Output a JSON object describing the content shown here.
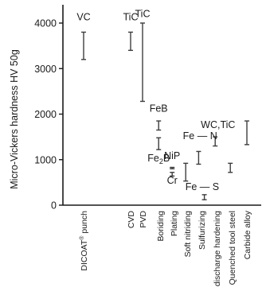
{
  "chart_data": {
    "type": "range",
    "title": "",
    "ylabel": "Micro-Vickers hardness  HV  50g",
    "xlabel": "",
    "ylim": [
      0,
      4500
    ],
    "yticks": [
      0,
      1000,
      2000,
      3000,
      4000
    ],
    "grid": false,
    "bar_color": "#3d3d3d",
    "axis_color": "#1a1a1a",
    "categories": [
      {
        "label": "DICOAT® punch",
        "label_main": "DICOAT",
        "label_sup": "®",
        "label_tail": " punch"
      },
      {
        "label": "CVD"
      },
      {
        "label": "PVD"
      },
      {
        "label": "Boriding"
      },
      {
        "label": "Plating"
      },
      {
        "label": "Soft nitriding"
      },
      {
        "label": "Sulfurizing"
      },
      {
        "label": "discharge hardening"
      },
      {
        "label": "Quenched tool steel"
      },
      {
        "label": "Carbide alloy"
      }
    ],
    "ranges": [
      {
        "category": "DICOAT® punch",
        "low": 3200,
        "high": 3800,
        "x_offset": 0
      },
      {
        "category": "CVD",
        "low": 3400,
        "high": 3800,
        "x_offset": 0
      },
      {
        "category": "PVD",
        "low": 2280,
        "high": 4000,
        "x_offset": 0
      },
      {
        "category": "Boriding",
        "low": 1650,
        "high": 1850,
        "x_offset": -0.1
      },
      {
        "category": "Boriding",
        "low": 1220,
        "high": 1480,
        "x_offset": -0.1
      },
      {
        "category": "Plating",
        "low": 800,
        "high": 830,
        "x_offset": -0.1
      },
      {
        "category": "Plating",
        "low": 640,
        "high": 720,
        "x_offset": -0.1
      },
      {
        "category": "Soft nitriding",
        "low": 530,
        "high": 920,
        "x_offset": -0.1
      },
      {
        "category": "Sulfurizing",
        "low": 900,
        "high": 1180,
        "x_offset": -0.2
      },
      {
        "category": "Sulfurizing",
        "low": 120,
        "high": 230,
        "x_offset": 0.2
      },
      {
        "category": "discharge hardening",
        "low": 1300,
        "high": 1500,
        "x_offset": -0.1
      },
      {
        "category": "Quenched tool steel",
        "low": 720,
        "high": 920,
        "x_offset": -0.1
      },
      {
        "category": "Carbide alloy",
        "low": 1330,
        "high": 1850,
        "x_offset": 0
      }
    ],
    "annotations": [
      {
        "text": "VC",
        "x": "DICOAT® punch",
        "x_offset": 0,
        "y": 4060
      },
      {
        "text": "TiC",
        "x": "CVD",
        "x_offset": 0,
        "y": 4060
      },
      {
        "text": "TiC",
        "x": "PVD",
        "x_offset": 0,
        "y": 4130
      },
      {
        "text": "FeB",
        "x": "Boriding",
        "x_offset": -0.1,
        "y": 2050
      },
      {
        "text": "Fe2B",
        "main": "Fe",
        "sub": "2",
        "tail": "B",
        "x": "Boriding",
        "x_offset": -0.1,
        "y": 960
      },
      {
        "text": "NiP",
        "x": "Plating",
        "x_offset": -0.1,
        "y": 1010
      },
      {
        "text": "Cr",
        "x": "Plating",
        "x_offset": -0.1,
        "y": 470
      },
      {
        "text": "Fe — N",
        "x": "Sulfurizing",
        "x_offset": -0.1,
        "y": 1450
      },
      {
        "text": "Fe — S",
        "x": "Sulfurizing",
        "x_offset": 0.05,
        "y": 330
      },
      {
        "text": "WC,TiC",
        "x": "discharge hardening",
        "x_offset": 0.1,
        "y": 1690
      }
    ]
  }
}
